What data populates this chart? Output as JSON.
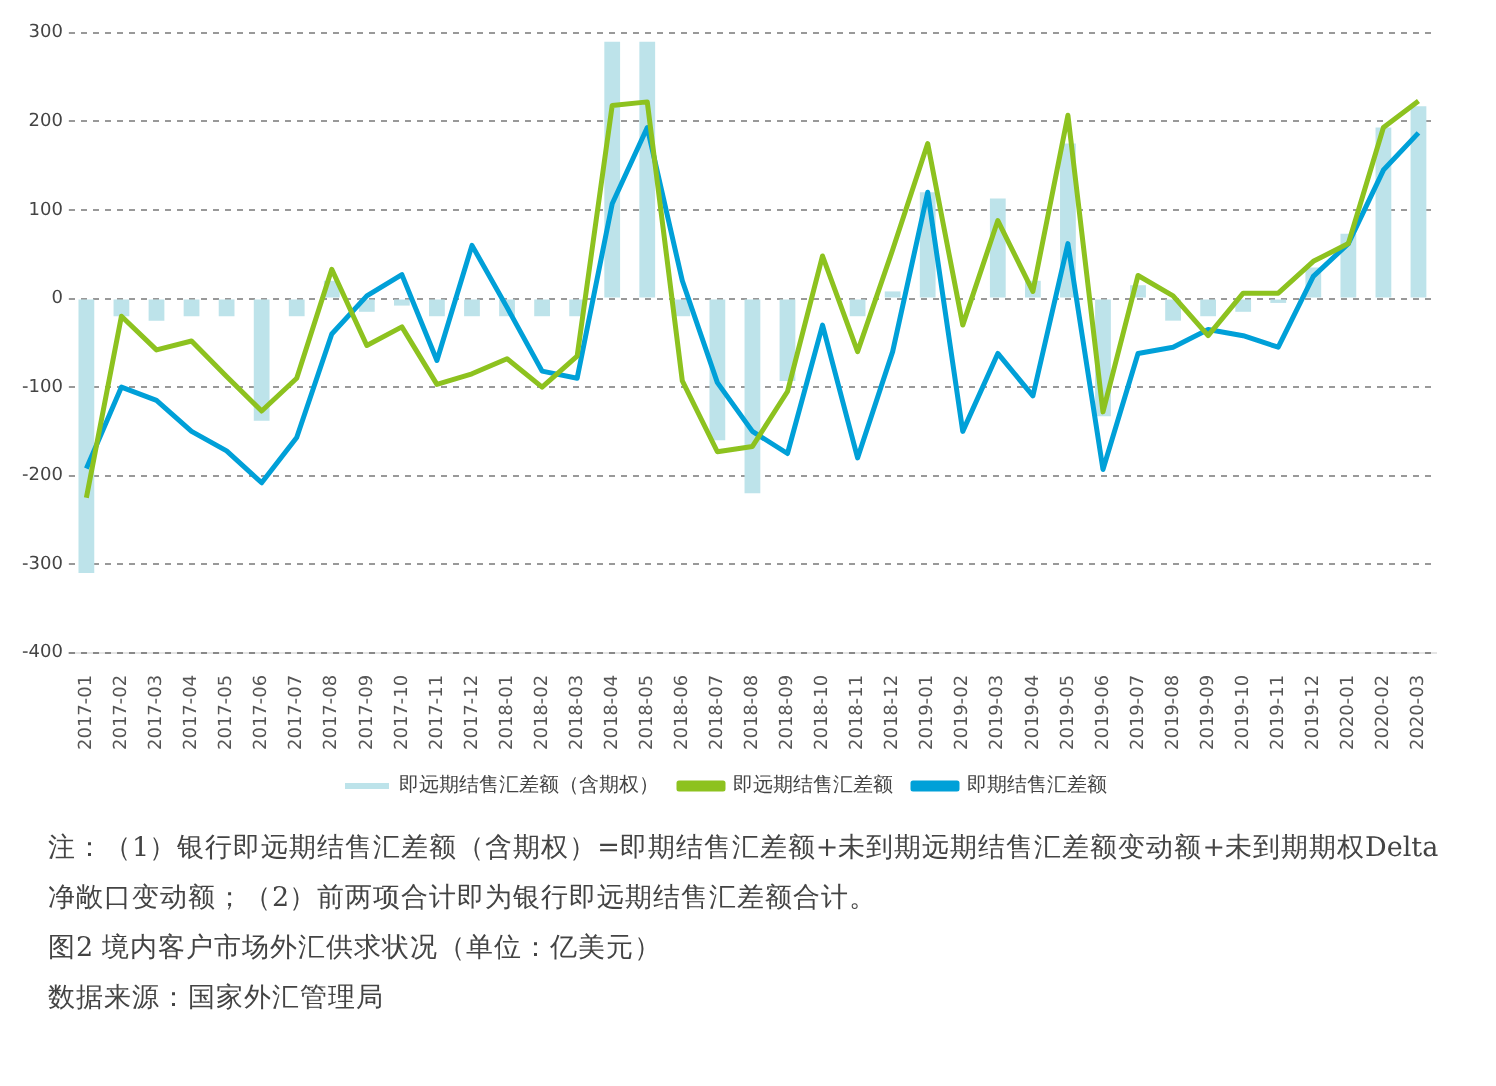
{
  "chart_data": {
    "type": "bar",
    "title": "图2  境内客户市场外汇供求状况（单位：亿美元）",
    "categories": [
      "2017-01",
      "2017-02",
      "2017-03",
      "2017-04",
      "2017-05",
      "2017-06",
      "2017-07",
      "2017-08",
      "2017-09",
      "2017-10",
      "2017-11",
      "2017-12",
      "2018-01",
      "2018-02",
      "2018-03",
      "2018-04",
      "2018-05",
      "2018-06",
      "2018-07",
      "2018-08",
      "2018-09",
      "2018-10",
      "2018-11",
      "2018-12",
      "2019-01",
      "2019-02",
      "2019-03",
      "2019-04",
      "2019-05",
      "2019-06",
      "2019-07",
      "2019-08",
      "2019-09",
      "2019-10",
      "2019-11",
      "2019-12",
      "2020-01",
      "2020-02",
      "2020-03"
    ],
    "series": [
      {
        "name": "即远期结售汇差额（含期权）",
        "color": "#bde3ea",
        "values": [
          -310,
          -20,
          -25,
          -20,
          -20,
          -138,
          -20,
          20,
          -15,
          -8,
          -20,
          -20,
          -20,
          -20,
          -20,
          290,
          290,
          -20,
          -160,
          -220,
          -93,
          null,
          -20,
          8,
          120,
          null,
          113,
          20,
          175,
          -133,
          15,
          -25,
          -20,
          -15,
          -5,
          35,
          73,
          193,
          217
        ]
      },
      {
        "name": "即远期结售汇差额",
        "type": "line",
        "color": "#8dc21f",
        "values": [
          -225,
          -20,
          -58,
          -48,
          -88,
          -127,
          -90,
          33,
          -53,
          -32,
          -97,
          -85,
          -68,
          -100,
          -65,
          218,
          222,
          -93,
          -173,
          -167,
          -105,
          48,
          -60,
          55,
          175,
          -30,
          88,
          8,
          207,
          -128,
          26,
          3,
          -42,
          6,
          6,
          42,
          62,
          193,
          223
        ]
      },
      {
        "name": "即期结售汇差额",
        "type": "line",
        "color": "#00a0d8",
        "values": [
          -192,
          -100,
          -115,
          -150,
          -172,
          -208,
          -157,
          -40,
          3,
          27,
          -70,
          60,
          -10,
          -82,
          -90,
          107,
          193,
          20,
          -95,
          -150,
          -175,
          -30,
          -180,
          -60,
          120,
          -150,
          -62,
          -110,
          62,
          -193,
          -62,
          -55,
          -35,
          -42,
          -55,
          25,
          62,
          145,
          187
        ]
      }
    ],
    "ylim": [
      -400,
      300
    ],
    "yticks": [
      -400,
      -300,
      -200,
      -100,
      0,
      100,
      200,
      300
    ],
    "grid": "y",
    "legend": "bottom",
    "marker": "none",
    "line_style": "solid",
    "annotations": [
      "注：（1）银行即远期结售汇差额（含期权）=即期结售汇差额+未到期远期结售汇差额变动额+未到期期权Delta净敞口变动额；（2）前两项合计即为银行即远期结售汇差额合计。",
      "数据来源：国家外汇管理局"
    ]
  }
}
